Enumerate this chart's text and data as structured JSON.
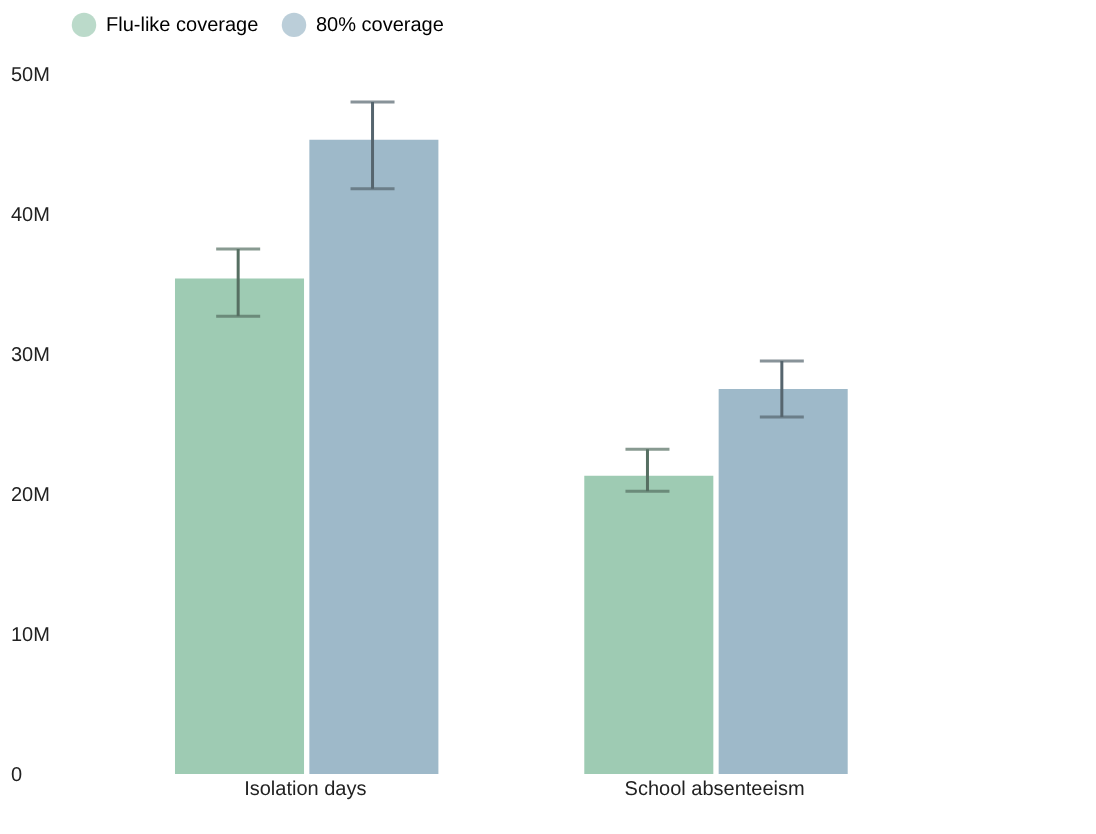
{
  "chart_data": {
    "type": "bar",
    "categories": [
      "Isolation days",
      "School absenteeism"
    ],
    "series": [
      {
        "name": "Flu-like coverage",
        "color": "#9ecbb3",
        "values": [
          35400000,
          21300000
        ],
        "errors": [
          [
            32700000,
            37500000
          ],
          [
            20200000,
            23200000
          ]
        ]
      },
      {
        "name": "80% coverage",
        "color": "#9eb9c9",
        "values": [
          45300000,
          27500000
        ],
        "errors": [
          [
            41800000,
            48000000
          ],
          [
            25500000,
            29500000
          ]
        ]
      }
    ],
    "ylim": [
      0,
      50000000
    ],
    "yticks": [
      {
        "value": 0,
        "label": "0"
      },
      {
        "value": 10000000,
        "label": "10M"
      },
      {
        "value": 20000000,
        "label": "20M"
      },
      {
        "value": 30000000,
        "label": "30M"
      },
      {
        "value": 40000000,
        "label": "40M"
      },
      {
        "value": 50000000,
        "label": "50M"
      }
    ],
    "grid": false,
    "legend": "top"
  }
}
